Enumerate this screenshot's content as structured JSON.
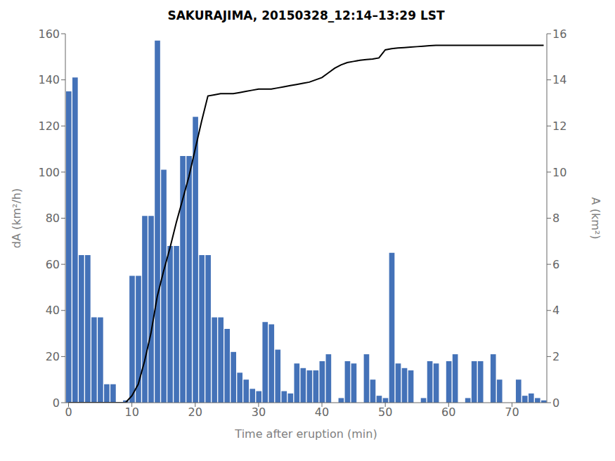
{
  "chart_data": {
    "type": "bar",
    "title": "SAKURAJIMA, 20150328_12:14–13:29 LST",
    "xlabel": "Time after eruption (min)",
    "ylabel": "dA (km²/h)",
    "y2label": "A (km²)",
    "xlim": [
      -0.5,
      75.5
    ],
    "xticks": [
      0,
      10,
      20,
      30,
      40,
      50,
      60,
      70
    ],
    "ylim": [
      0,
      160
    ],
    "yticks": [
      0,
      20,
      40,
      60,
      80,
      100,
      120,
      140,
      160
    ],
    "y2lim": [
      0,
      16
    ],
    "y2ticks": [
      0,
      2,
      4,
      6,
      8,
      10,
      12,
      14,
      16
    ],
    "grid": false,
    "series": [
      {
        "type": "bar",
        "color": "#4472b8",
        "x": [
          0,
          1,
          2,
          3,
          4,
          5,
          6,
          7,
          8,
          9,
          10,
          11,
          12,
          13,
          14,
          15,
          16,
          17,
          18,
          19,
          20,
          21,
          22,
          23,
          24,
          25,
          26,
          27,
          28,
          29,
          30,
          31,
          32,
          33,
          34,
          35,
          36,
          37,
          38,
          39,
          40,
          41,
          42,
          43,
          44,
          45,
          46,
          47,
          48,
          49,
          50,
          51,
          52,
          53,
          54,
          55,
          56,
          57,
          58,
          59,
          60,
          61,
          62,
          63,
          64,
          65,
          66,
          67,
          68,
          69,
          70,
          71,
          72,
          73,
          74,
          75
        ],
        "values": [
          135,
          141,
          64,
          64,
          37,
          37,
          8,
          8,
          0,
          1,
          55,
          55,
          81,
          81,
          157,
          101,
          68,
          68,
          107,
          107,
          124,
          64,
          64,
          37,
          37,
          32,
          22,
          13,
          10,
          6,
          5,
          35,
          34,
          23,
          5,
          4,
          17,
          15,
          14,
          14,
          18,
          21,
          0,
          2,
          18,
          17,
          0,
          21,
          10,
          3,
          2,
          65,
          17,
          15,
          14,
          0,
          2,
          18,
          17,
          0,
          18,
          21,
          0,
          2,
          18,
          18,
          0,
          21,
          10,
          0,
          0,
          10,
          3,
          4,
          2,
          1
        ]
      },
      {
        "type": "line",
        "color": "black",
        "axis": "y2",
        "x": [
          0,
          9,
          10,
          11,
          12,
          13,
          14,
          15,
          16,
          17,
          18,
          19,
          20,
          21,
          22,
          23,
          24,
          25,
          26,
          27,
          28,
          29,
          30,
          31,
          32,
          33,
          34,
          35,
          36,
          37,
          38,
          39,
          40,
          41,
          42,
          43,
          44,
          45,
          46,
          47,
          48,
          49,
          50,
          51,
          52,
          53,
          54,
          55,
          56,
          57,
          58,
          59,
          60,
          61,
          62,
          63,
          64,
          65,
          66,
          67,
          68,
          69,
          70,
          71,
          72,
          73,
          74,
          75
        ],
        "values": [
          0,
          0,
          0.3,
          0.8,
          1.8,
          3.0,
          4.6,
          5.7,
          6.7,
          7.8,
          8.8,
          9.8,
          11.0,
          12.2,
          13.3,
          13.35,
          13.4,
          13.4,
          13.4,
          13.45,
          13.5,
          13.55,
          13.6,
          13.6,
          13.6,
          13.65,
          13.7,
          13.75,
          13.8,
          13.85,
          13.9,
          14.0,
          14.1,
          14.3,
          14.5,
          14.65,
          14.75,
          14.8,
          14.85,
          14.88,
          14.9,
          14.95,
          15.3,
          15.35,
          15.38,
          15.4,
          15.42,
          15.44,
          15.46,
          15.48,
          15.5,
          15.5,
          15.5,
          15.5,
          15.5,
          15.5,
          15.5,
          15.5,
          15.5,
          15.5,
          15.5,
          15.5,
          15.5,
          15.5,
          15.5,
          15.5,
          15.5,
          15.5
        ]
      }
    ]
  }
}
